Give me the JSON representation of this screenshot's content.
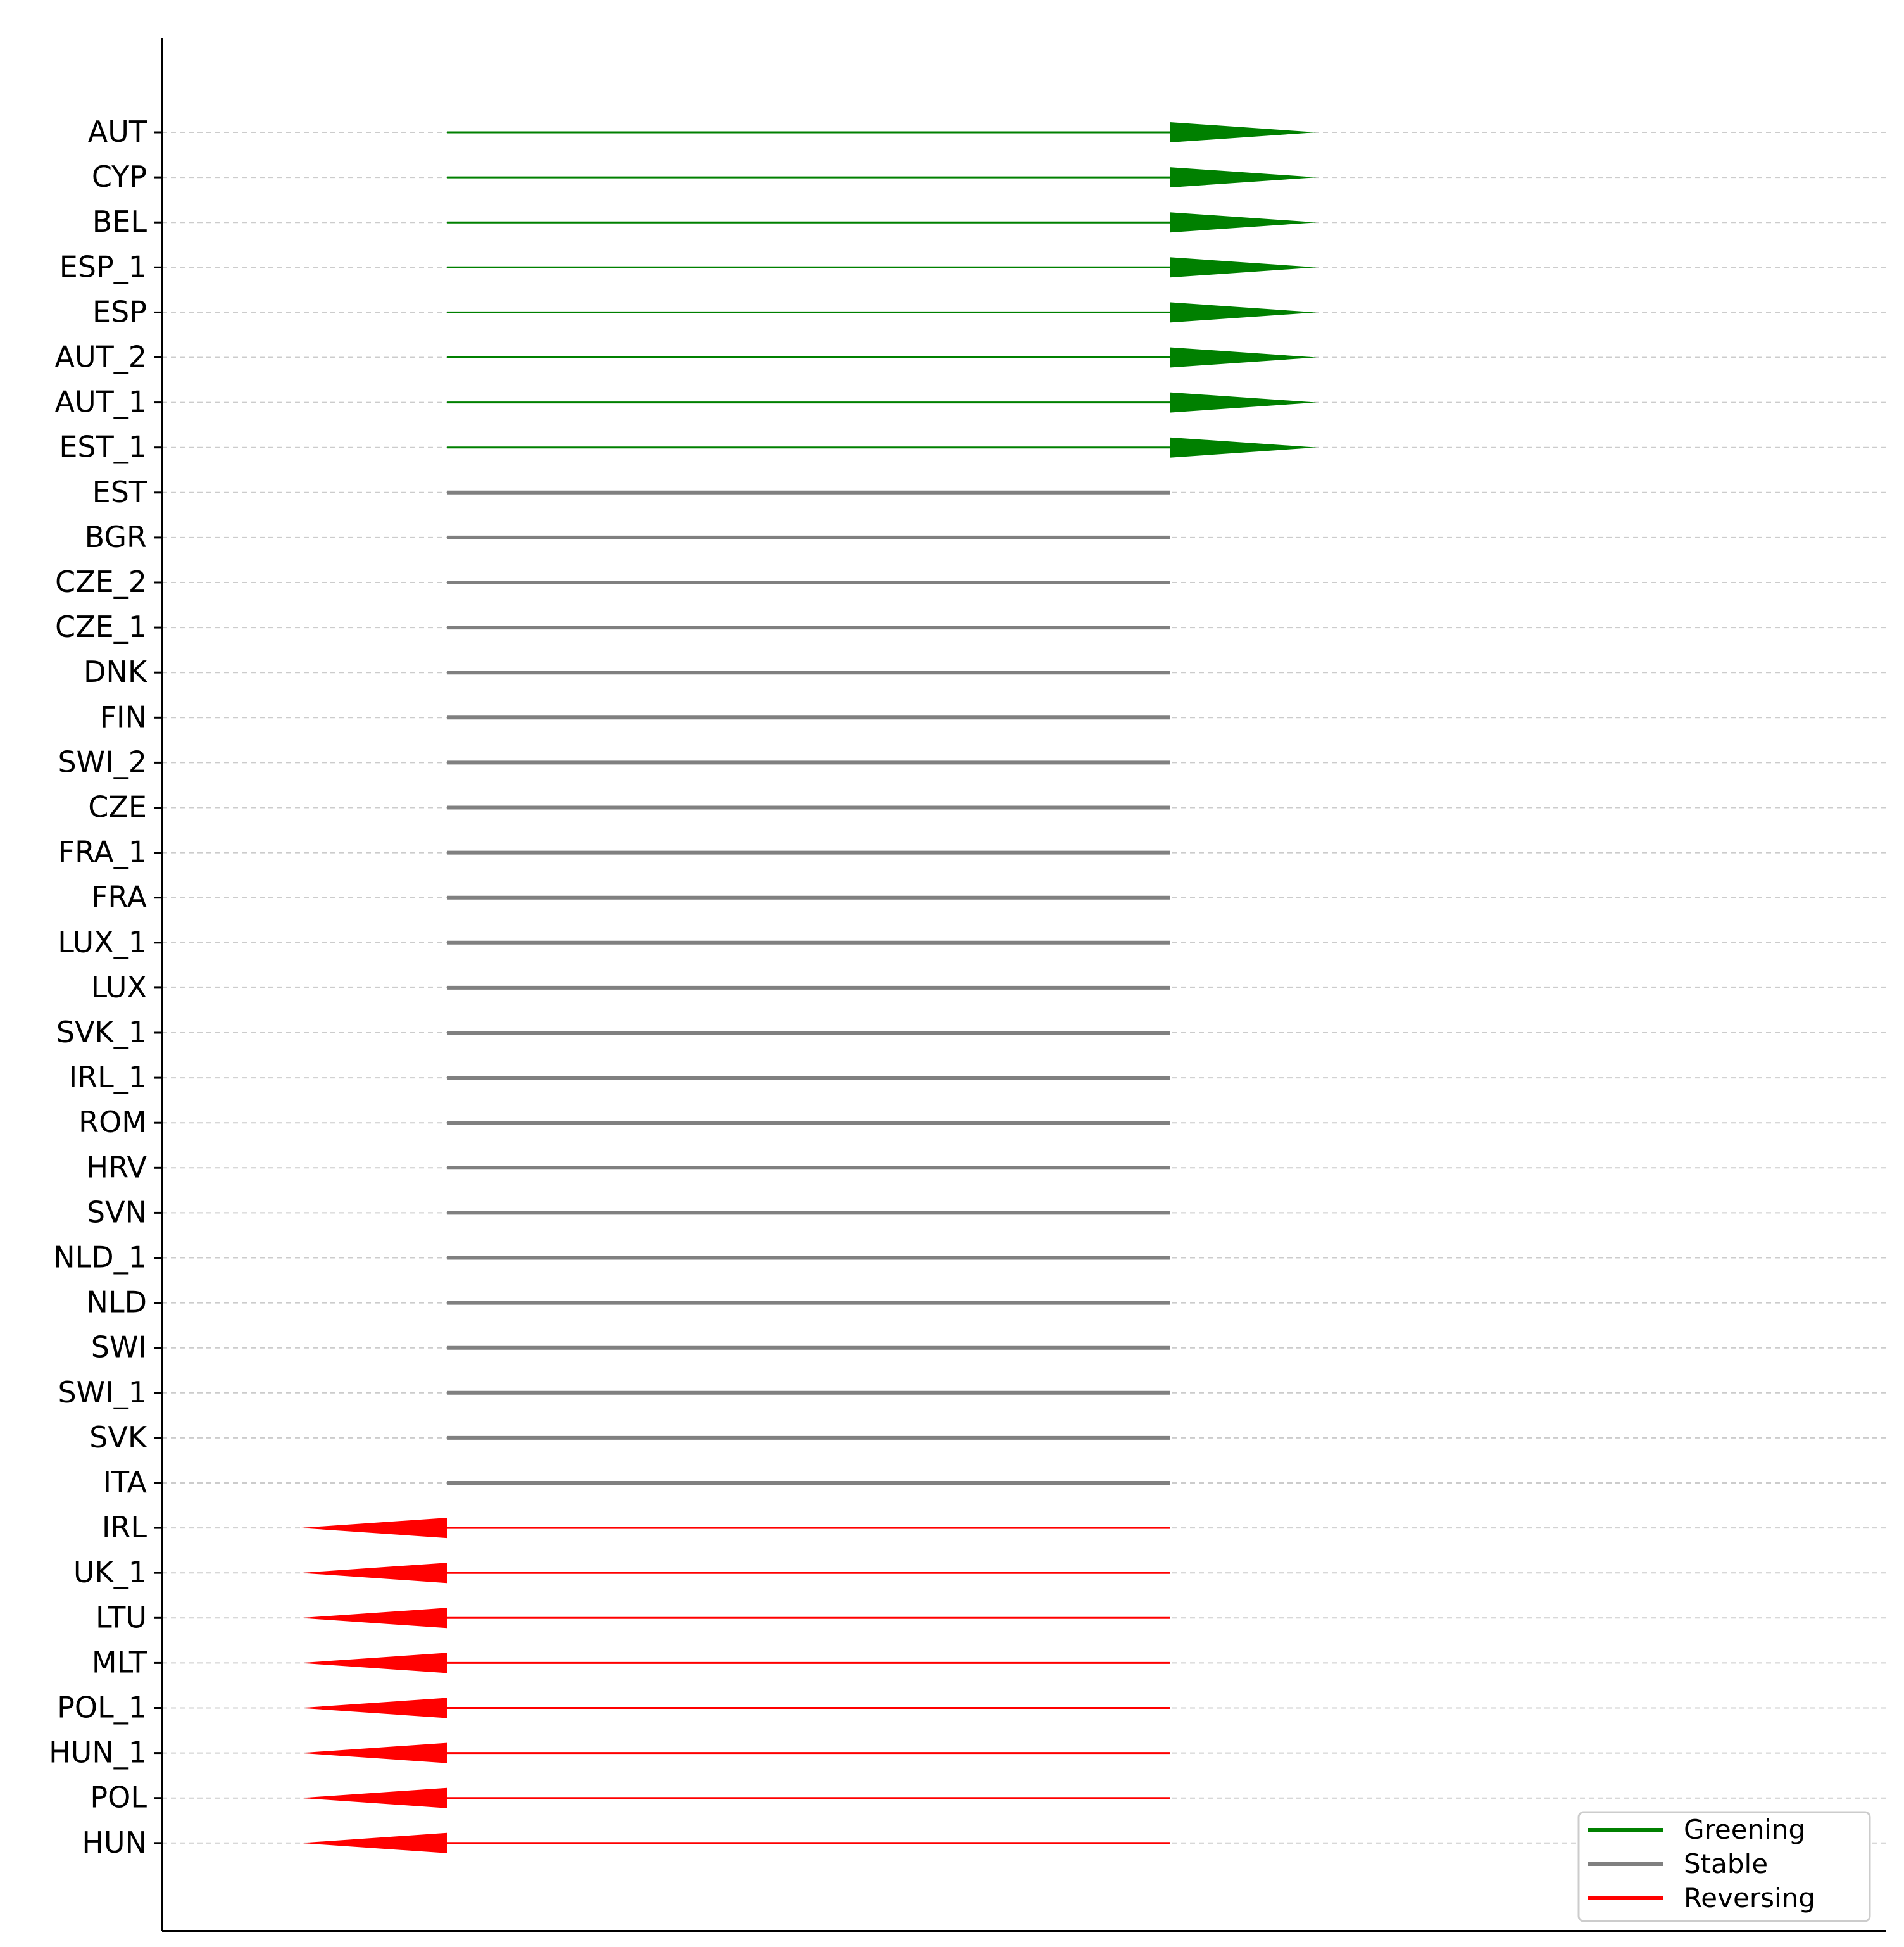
{
  "chart_data": {
    "type": "arrow",
    "categories": [
      "AUT",
      "CYP",
      "BEL",
      "ESP_1",
      "ESP",
      "AUT_2",
      "AUT_1",
      "EST_1",
      "EST",
      "BGR",
      "CZE_2",
      "CZE_1",
      "DNK",
      "FIN",
      "SWI_2",
      "CZE",
      "FRA_1",
      "FRA",
      "LUX_1",
      "LUX",
      "SVK_1",
      "IRL_1",
      "ROM",
      "HRV",
      "SVN",
      "NLD_1",
      "NLD",
      "SWI",
      "SWI_1",
      "SVK",
      "ITA",
      "IRL",
      "UK_1",
      "LTU",
      "MLT",
      "POL_1",
      "HUN_1",
      "POL",
      "HUN"
    ],
    "status": [
      "Greening",
      "Greening",
      "Greening",
      "Greening",
      "Greening",
      "Greening",
      "Greening",
      "Greening",
      "Stable",
      "Stable",
      "Stable",
      "Stable",
      "Stable",
      "Stable",
      "Stable",
      "Stable",
      "Stable",
      "Stable",
      "Stable",
      "Stable",
      "Stable",
      "Stable",
      "Stable",
      "Stable",
      "Stable",
      "Stable",
      "Stable",
      "Stable",
      "Stable",
      "Stable",
      "Stable",
      "Reversing",
      "Reversing",
      "Reversing",
      "Reversing",
      "Reversing",
      "Reversing",
      "Reversing",
      "Reversing"
    ],
    "grid": true,
    "legend": {
      "placement": "lower-right",
      "entries": [
        {
          "label": "Greening",
          "color": "#008000"
        },
        {
          "label": "Stable",
          "color": "#808080"
        },
        {
          "label": "Reversing",
          "color": "#ff0000"
        }
      ]
    }
  }
}
